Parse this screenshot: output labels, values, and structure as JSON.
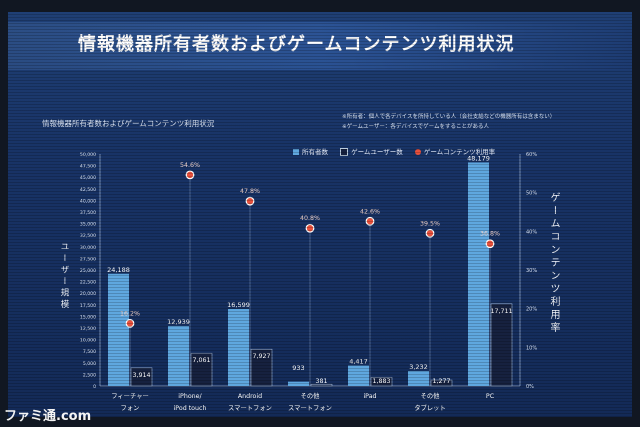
{
  "page": {
    "title": "情報機器所有者数およびゲームコンテンツ利用状況",
    "subtitle": "情報機器所有者数およびゲームコンテンツ利用状況",
    "notes": [
      "※所有者：個人で各デバイスを所持している人（会社支給などの機器所有は含まない）",
      "※ゲームユーザー：各デバイスでゲームをすることがある人"
    ],
    "logo": "ファミ通.com"
  },
  "legend": {
    "owners": "所有者数",
    "gamers": "ゲームユーザー数",
    "rate": "ゲームコンテンツ利用率"
  },
  "colors": {
    "owners_bar": "#5fa7df",
    "gamers_bar": "#16213f",
    "rate_dot": "#e8503c",
    "axis_text": "#dde6f5"
  },
  "chart_data": {
    "type": "bar",
    "categories": [
      [
        "フィーチャー",
        "フォン"
      ],
      [
        "iPhone/",
        "iPod touch"
      ],
      [
        "Android",
        "スマートフォン"
      ],
      [
        "その他",
        "スマートフォン"
      ],
      [
        "iPad",
        ""
      ],
      [
        "その他",
        "タブレット"
      ],
      [
        "PC",
        ""
      ]
    ],
    "series": [
      {
        "name": "所有者数",
        "values": [
          24188,
          12939,
          16599,
          933,
          4417,
          3232,
          48179
        ],
        "labels": [
          "24,188",
          "12,939",
          "16,599",
          "933",
          "4,417",
          "3,232",
          "48,179"
        ]
      },
      {
        "name": "ゲームユーザー数",
        "values": [
          3914,
          7061,
          7927,
          381,
          1883,
          1277,
          17711
        ],
        "labels": [
          "3,914",
          "7,061",
          "7,927",
          "381",
          "1,883",
          "1,277",
          "17,711"
        ]
      },
      {
        "name": "ゲームコンテンツ利用率",
        "values": [
          16.2,
          54.6,
          47.8,
          40.8,
          42.6,
          39.5,
          36.8
        ],
        "labels": [
          "16.2%",
          "54.6%",
          "47.8%",
          "40.8%",
          "42.6%",
          "39.5%",
          "36.8%"
        ]
      }
    ],
    "ylabel": "ユーザー規模",
    "y2label": "ゲームコンテンツ利用率",
    "ylim": [
      0,
      50000
    ],
    "y2lim": [
      0,
      60
    ],
    "yticks": [
      "0",
      "2,500",
      "5,000",
      "7,500",
      "10,000",
      "12,500",
      "15,000",
      "17,500",
      "20,000",
      "22,500",
      "25,000",
      "27,500",
      "30,000",
      "32,500",
      "35,000",
      "37,500",
      "40,000",
      "42,500",
      "45,000",
      "47,500",
      "50,000"
    ],
    "y2ticks": [
      "0%",
      "10%",
      "20%",
      "30%",
      "40%",
      "50%",
      "60%"
    ],
    "grid": false,
    "legend_position": "top-right"
  }
}
